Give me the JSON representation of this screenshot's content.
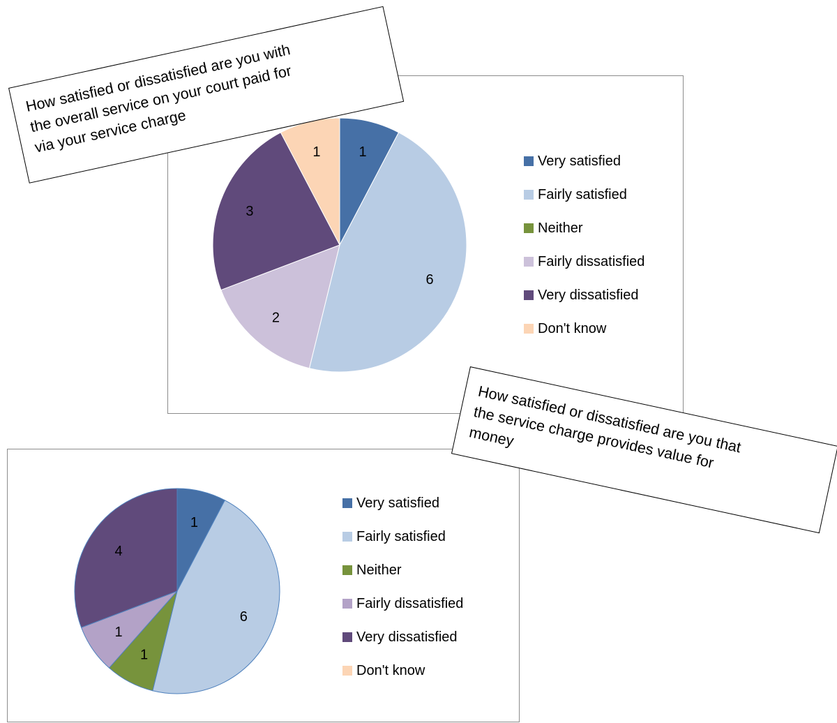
{
  "chart_data": [
    {
      "type": "pie",
      "title": "How satisfied or dissatisfied are you with the overall service on your court paid for via your service charge",
      "categories": [
        "Very satisfied",
        "Fairly satisfied",
        "Neither",
        "Fairly dissatisfied",
        "Very dissatisfied",
        "Don't know"
      ],
      "values": [
        1,
        6,
        0,
        2,
        3,
        1
      ],
      "colors": [
        "#4670a6",
        "#b8cce4",
        "#77933c",
        "#ccc1da",
        "#604a7b",
        "#fcd5b5"
      ],
      "legend_position": "right"
    },
    {
      "type": "pie",
      "title": "How satisfied or dissatisfied are you that the service charge provides value for money",
      "categories": [
        "Very satisfied",
        "Fairly satisfied",
        "Neither",
        "Fairly dissatisfied",
        "Very dissatisfied",
        "Don't know"
      ],
      "values": [
        1,
        6,
        1,
        1,
        4,
        0
      ],
      "colors": [
        "#4670a6",
        "#b8cce4",
        "#77933c",
        "#b3a2c7",
        "#604a7b",
        "#fcd5b5"
      ],
      "legend_position": "right"
    }
  ],
  "callouts": [
    {
      "lines": [
        "How satisfied or dissatisfied are you with",
        "the overall service on your court paid for",
        "via your service charge"
      ]
    },
    {
      "lines": [
        "How satisfied or dissatisfied are you that",
        "the service charge provides value for",
        "money"
      ]
    }
  ]
}
